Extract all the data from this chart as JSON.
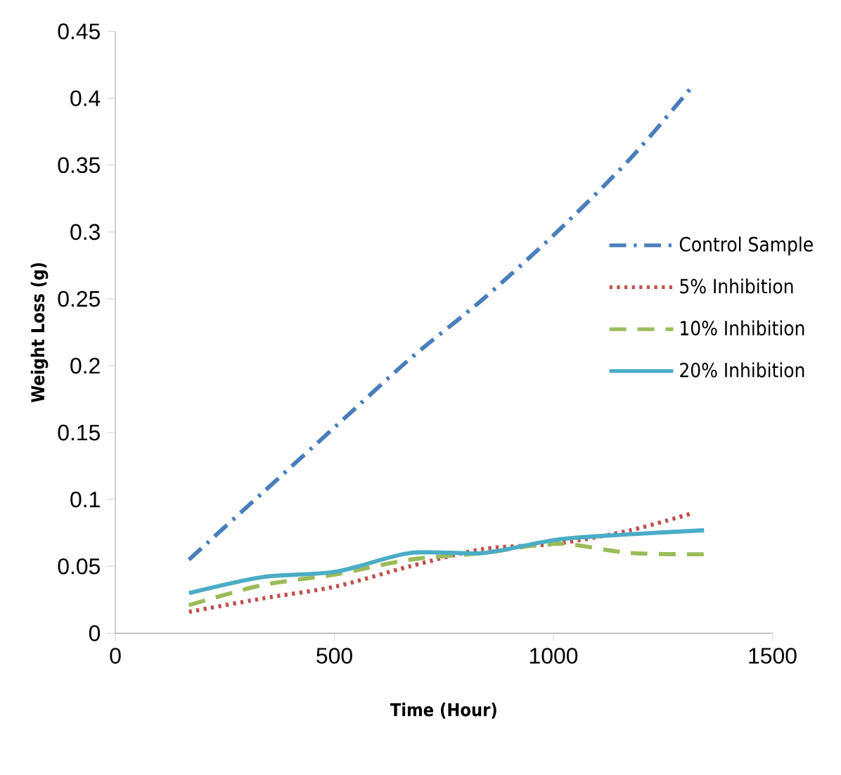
{
  "chart_data": {
    "type": "line",
    "xlabel": "Time (Hour)",
    "ylabel": "Weight Loss (g)",
    "xlim": [
      0,
      1500
    ],
    "xticks": [
      0,
      500,
      1000,
      1500
    ],
    "ylim": [
      0,
      0.45
    ],
    "yticks": [
      0,
      0.05,
      0.1,
      0.15,
      0.2,
      0.25,
      0.3,
      0.35,
      0.4,
      0.45
    ],
    "grid": false,
    "legend": "right",
    "marker": "none",
    "series": [
      {
        "name": "Control Sample",
        "color": "#4a7ebb",
        "line_style": "dashdot",
        "x": [
          168,
          336,
          504,
          672,
          840,
          1008,
          1176,
          1320
        ],
        "values": [
          0.055,
          0.105,
          0.155,
          0.205,
          0.25,
          0.3,
          0.355,
          0.41
        ]
      },
      {
        "name": "5% Inhibition",
        "color": "#c0504d",
        "line_style": "dotted",
        "x": [
          168,
          336,
          504,
          672,
          840,
          1008,
          1176,
          1320
        ],
        "values": [
          0.016,
          0.026,
          0.035,
          0.05,
          0.063,
          0.067,
          0.077,
          0.09
        ]
      },
      {
        "name": "10% Inhibition",
        "color": "#9bbb59",
        "line_style": "dashed",
        "x": [
          168,
          336,
          504,
          672,
          840,
          1008,
          1176,
          1344
        ],
        "values": [
          0.021,
          0.036,
          0.044,
          0.055,
          0.06,
          0.067,
          0.06,
          0.059
        ]
      },
      {
        "name": "20% Inhibition",
        "color": "#4bacc6",
        "line_style": "solid",
        "x": [
          168,
          336,
          504,
          672,
          840,
          1008,
          1176,
          1344
        ],
        "values": [
          0.03,
          0.042,
          0.046,
          0.06,
          0.06,
          0.07,
          0.074,
          0.077
        ]
      }
    ]
  }
}
